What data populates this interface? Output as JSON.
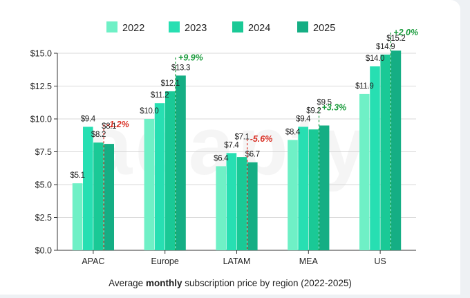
{
  "chart_data": {
    "type": "bar",
    "title": "",
    "caption_parts": {
      "before": "Average ",
      "bold": "monthly",
      "after": " subscription price by region (2022-2025)"
    },
    "categories": [
      "APAC",
      "Europe",
      "LATAM",
      "MEA",
      "US"
    ],
    "series": [
      {
        "name": "2022",
        "color": "#6ff0c6",
        "values": [
          5.1,
          10.0,
          6.4,
          8.4,
          11.9
        ]
      },
      {
        "name": "2023",
        "color": "#27dfb2",
        "values": [
          9.4,
          11.2,
          7.4,
          9.4,
          14.0
        ]
      },
      {
        "name": "2024",
        "color": "#1ac996",
        "values": [
          8.2,
          12.1,
          7.1,
          9.2,
          14.9
        ]
      },
      {
        "name": "2025",
        "color": "#15ae84",
        "values": [
          8.1,
          13.3,
          6.7,
          9.5,
          15.2
        ]
      }
    ],
    "value_labels": [
      [
        "$5.1",
        "$9.4",
        "$8.2",
        "$8.1"
      ],
      [
        "$10.0",
        "$11.2",
        "$12.1",
        "$13.3"
      ],
      [
        "$6.4",
        "$7.4",
        "$7.1",
        "$6.7"
      ],
      [
        "$8.4",
        "$9.4",
        "$9.2",
        "$9.5"
      ],
      [
        "$11.9",
        "$14.0",
        "$14.9",
        "$15.2"
      ]
    ],
    "changes": [
      {
        "text": "-1.2%",
        "positive": false
      },
      {
        "text": "+9.9%",
        "positive": true
      },
      {
        "text": "-5.6%",
        "positive": false
      },
      {
        "text": "+3.3%",
        "positive": true
      },
      {
        "text": "+2.0%",
        "positive": true
      }
    ],
    "ylim": [
      0,
      15
    ],
    "yticks": [
      0,
      2.5,
      5,
      7.5,
      10,
      12.5,
      15
    ],
    "ytick_labels": [
      "$0.0",
      "$2.5",
      "$5.0",
      "$7.5",
      "$10.0",
      "$12.5",
      "$15.0"
    ],
    "legend_position": "top-center",
    "colors": {
      "positive": "#1a9b3c",
      "negative": "#d93025",
      "axis_text": "#222222",
      "grid": "#cccccc"
    },
    "watermark": "adapty"
  }
}
